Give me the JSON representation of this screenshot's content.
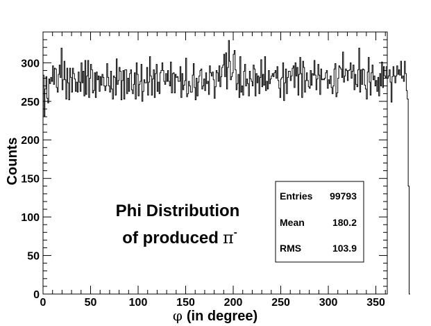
{
  "chart_data": {
    "type": "histogram",
    "xlabel": "(in degree)",
    "xlabel_symbol": "φ",
    "ylabel": "Counts",
    "xlim": [
      0,
      362
    ],
    "ylim": [
      0,
      340
    ],
    "x_ticks": [
      0,
      50,
      100,
      150,
      200,
      250,
      300,
      350
    ],
    "y_ticks": [
      0,
      50,
      100,
      150,
      200,
      250,
      300
    ],
    "grid": false,
    "annotation_line1": "Phi Distribution",
    "annotation_line2": "of produced",
    "annotation_symbol": "π",
    "annotation_superscript": "-",
    "stats": [
      {
        "label": "Entries",
        "value": "99793"
      },
      {
        "label": "Mean",
        "value": "180.2"
      },
      {
        "label": "RMS",
        "value": "103.9"
      }
    ],
    "bin_width": 1,
    "values": [
      284,
      231,
      266,
      282,
      254,
      248,
      279,
      273,
      281,
      276,
      296,
      272,
      293,
      292,
      268,
      262,
      285,
      297,
      281,
      319,
      265,
      278,
      302,
      278,
      253,
      293,
      274,
      252,
      293,
      281,
      262,
      293,
      286,
      279,
      263,
      275,
      262,
      288,
      275,
      263,
      300,
      274,
      289,
      257,
      303,
      259,
      283,
      303,
      255,
      280,
      298,
      291,
      261,
      264,
      287,
      255,
      288,
      278,
      283,
      263,
      282,
      271,
      285,
      281,
      270,
      264,
      270,
      299,
      281,
      270,
      262,
      289,
      266,
      253,
      283,
      281,
      258,
      305,
      272,
      277,
      294,
      289,
      252,
      277,
      290,
      253,
      291,
      291,
      260,
      280,
      263,
      286,
      291,
      265,
      260,
      272,
      287,
      253,
      300,
      285,
      257,
      272,
      276,
      298,
      250,
      263,
      278,
      274,
      274,
      294,
      258,
      275,
      308,
      283,
      258,
      279,
      291,
      255,
      286,
      298,
      263,
      275,
      260,
      287,
      290,
      300,
      290,
      276,
      272,
      286,
      276,
      290,
      276,
      270,
      301,
      261,
      286,
      287,
      261,
      285,
      281,
      282,
      276,
      276,
      295,
      255,
      286,
      265,
      271,
      277,
      306,
      256,
      260,
      276,
      270,
      262,
      262,
      284,
      299,
      268,
      252,
      280,
      257,
      275,
      283,
      290,
      292,
      266,
      270,
      279,
      264,
      287,
      273,
      276,
      259,
      296,
      287,
      283,
      288,
      278,
      254,
      269,
      290,
      287,
      276,
      296,
      269,
      282,
      294,
      297,
      311,
      282,
      313,
      266,
      294,
      329,
      302,
      278,
      282,
      287,
      311,
      316,
      291,
      265,
      273,
      285,
      255,
      308,
      262,
      270,
      258,
      289,
      298,
      270,
      279,
      273,
      257,
      289,
      279,
      276,
      270,
      297,
      292,
      257,
      286,
      274,
      283,
      260,
      281,
      304,
      269,
      285,
      271,
      308,
      264,
      276,
      266,
      290,
      273,
      279,
      283,
      286,
      282,
      287,
      290,
      280,
      295,
      277,
      267,
      255,
      279,
      281,
      300,
      251,
      274,
      292,
      260,
      281,
      289,
      289,
      277,
      283,
      293,
      296,
      268,
      300,
      283,
      294,
      258,
      285,
      307,
      286,
      255,
      302,
      294,
      262,
      277,
      287,
      277,
      269,
      267,
      290,
      271,
      286,
      284,
      303,
      284,
      265,
      279,
      298,
      284,
      259,
      292,
      278,
      279,
      278,
      280,
      287,
      290,
      267,
      278,
      273,
      283,
      268,
      260,
      270,
      292,
      299,
      256,
      261,
      280,
      296,
      294,
      292,
      281,
      314,
      275,
      283,
      292,
      290,
      277,
      290,
      291,
      300,
      280,
      289,
      297,
      265,
      285,
      272,
      269,
      291,
      319,
      262,
      291,
      272,
      292,
      291,
      271,
      266,
      253,
      288,
      307,
      275,
      258,
      287,
      297,
      278,
      283,
      270,
      277,
      263,
      281,
      257,
      286,
      270,
      301,
      268,
      295,
      283,
      281,
      295,
      280,
      283,
      291,
      275,
      249,
      282,
      295,
      283,
      274,
      283,
      296,
      285,
      291,
      284,
      302,
      280,
      283,
      276,
      302,
      286,
      264,
      253,
      140,
      0
    ]
  }
}
